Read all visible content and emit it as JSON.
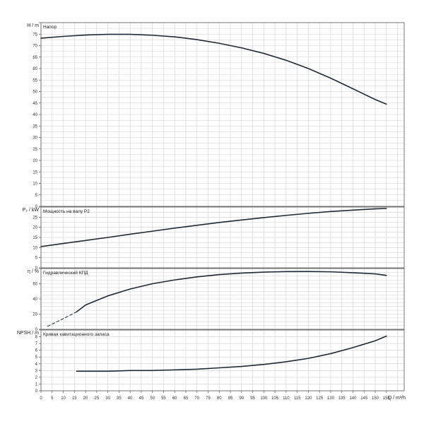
{
  "colors": {
    "curve": "#1f2a36",
    "grid": "#cfcfcf",
    "frame": "#555555",
    "background": "#ffffff"
  },
  "chart_data": [
    {
      "type": "line",
      "id": "head",
      "title": "Напор",
      "ylabel": "H / m",
      "ylim": [
        0,
        80
      ],
      "ytick_step": 5,
      "series": [
        {
          "x": [
            0,
            10,
            20,
            30,
            40,
            50,
            60,
            70,
            80,
            90,
            100,
            110,
            120,
            130,
            140,
            150,
            155
          ],
          "y": [
            73.2,
            74.0,
            74.6,
            74.9,
            74.9,
            74.5,
            73.8,
            72.6,
            71.0,
            69.0,
            66.6,
            63.6,
            60.0,
            55.8,
            51.2,
            46.5,
            44.5
          ]
        }
      ]
    },
    {
      "type": "line",
      "id": "power",
      "title": "Мощность на валу P2",
      "ylabel": "P₂ / kW",
      "ylim": [
        0,
        30
      ],
      "ytick_step": 5,
      "series": [
        {
          "x": [
            0,
            10,
            20,
            30,
            40,
            50,
            60,
            70,
            80,
            90,
            100,
            110,
            120,
            130,
            140,
            150,
            155
          ],
          "y": [
            10.5,
            12.0,
            13.5,
            15.0,
            16.6,
            18.1,
            19.6,
            21.0,
            22.4,
            23.6,
            24.8,
            25.9,
            26.9,
            27.8,
            28.5,
            29.1,
            29.3
          ]
        }
      ]
    },
    {
      "type": "line",
      "id": "efficiency",
      "title": "Гидравлический КПД",
      "ylabel": "η / %",
      "ylim": [
        0,
        80
      ],
      "ytick_step": 20,
      "series": [
        {
          "style": "dashed",
          "x": [
            3,
            10,
            16
          ],
          "y": [
            4,
            14,
            23
          ]
        },
        {
          "style": "solid",
          "x": [
            16,
            20,
            30,
            40,
            50,
            60,
            70,
            80,
            90,
            100,
            110,
            120,
            130,
            140,
            150,
            155
          ],
          "y": [
            23,
            32,
            44,
            53,
            60,
            65,
            69,
            72,
            74,
            75.3,
            76,
            76.1,
            75.7,
            74.5,
            73,
            71
          ]
        }
      ]
    },
    {
      "type": "line",
      "id": "npsh",
      "title": "Кривая кавитационного запаса",
      "ylabel": "NPSH / m",
      "ylim": [
        0,
        9
      ],
      "ytick_step": 1,
      "series": [
        {
          "x": [
            16,
            30,
            40,
            50,
            60,
            70,
            80,
            90,
            100,
            110,
            120,
            130,
            140,
            150,
            155
          ],
          "y": [
            2.9,
            2.9,
            3.0,
            3.0,
            3.1,
            3.2,
            3.4,
            3.6,
            3.9,
            4.3,
            4.8,
            5.5,
            6.4,
            7.4,
            8.1
          ]
        }
      ]
    }
  ],
  "x_axis": {
    "label": "Q / m³/h",
    "xlim": [
      0,
      163
    ],
    "tick_step": 5,
    "tick_max": 155
  }
}
